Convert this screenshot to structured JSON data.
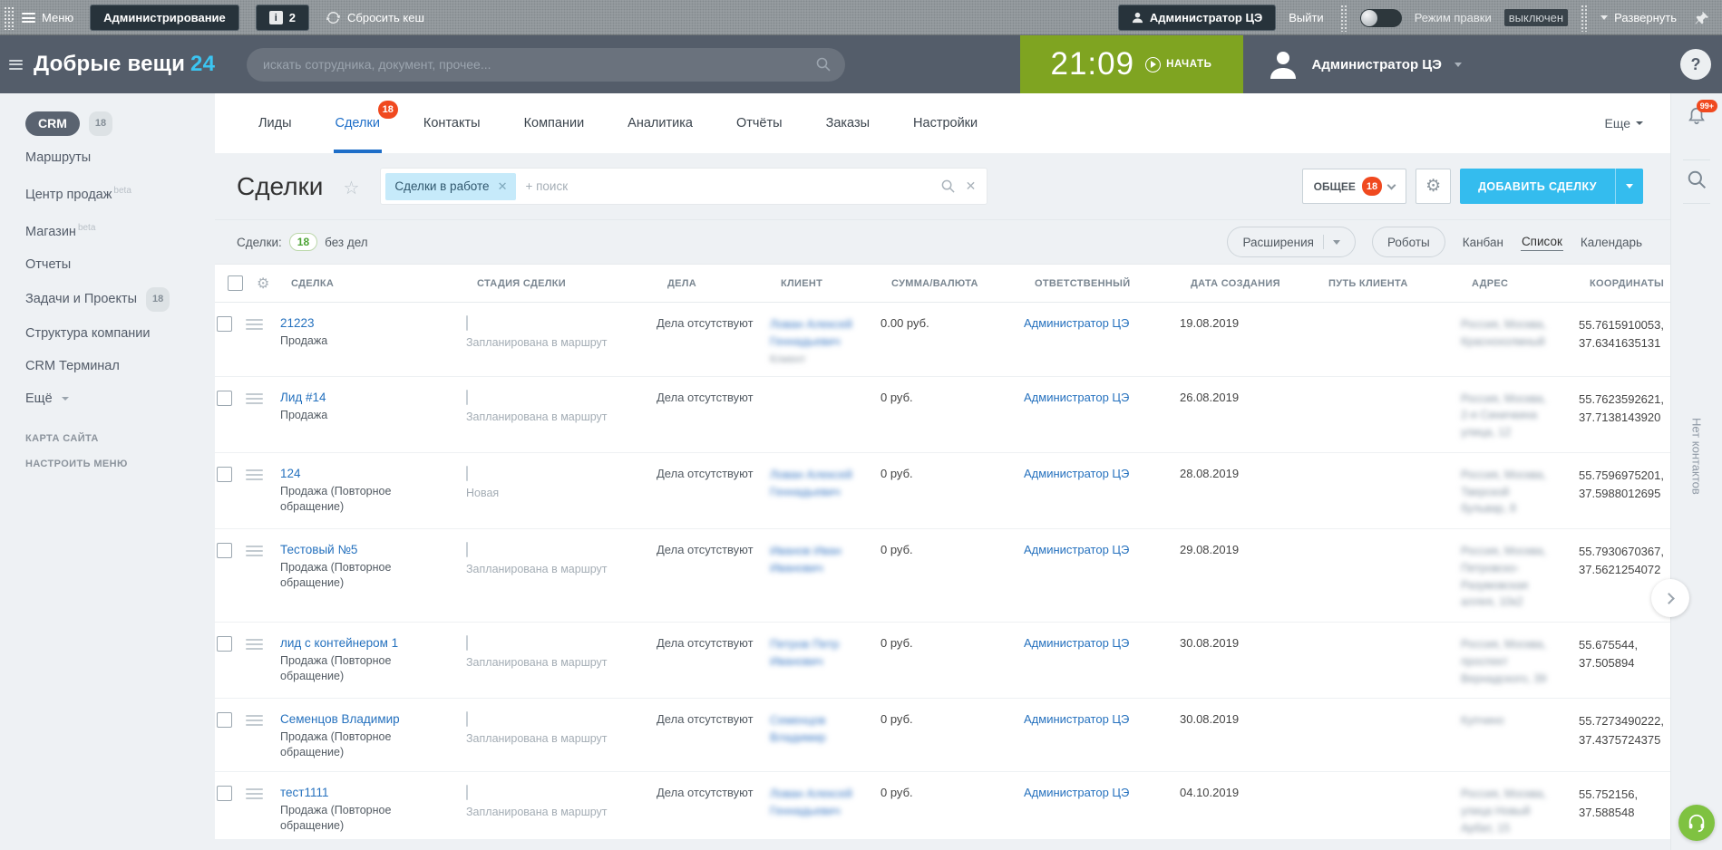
{
  "colors": {
    "header_dark": "#545d6a",
    "accent_cyan": "#34bcee",
    "link_blue": "#2571be",
    "tab_active_blue": "#1e6ec8",
    "badge_red": "#f0491f",
    "timer_green": "#7fa421",
    "chat_green": "#7fc241",
    "counter_green": "#4ca335",
    "progress_cyan": "#45c7f1"
  },
  "admin_bar": {
    "menu_label": "Меню",
    "admin_button": "Администрирование",
    "info_badge": "2",
    "reset_cache": "Сбросить кеш",
    "user_button": "Администратор ЦЭ",
    "logout": "Выйти",
    "edit_mode_label": "Режим правки",
    "edit_mode_state": "выключен",
    "expand": "Развернуть"
  },
  "header": {
    "brand": "Добрые вещи",
    "brand_suffix": "24",
    "search_placeholder": "искать сотрудника, документ, прочее...",
    "timer_time": "21:09",
    "timer_action": "НАЧАТЬ",
    "user_name": "Администратор ЦЭ",
    "help_label": "?"
  },
  "sidebar": {
    "items": [
      {
        "label": "CRM",
        "badge": "18",
        "active": true
      },
      {
        "label": "Маршруты"
      },
      {
        "label": "Центр продаж",
        "beta": "beta"
      },
      {
        "label": "Магазин",
        "beta": "beta"
      },
      {
        "label": "Отчеты"
      },
      {
        "label": "Задачи и Проекты",
        "badge": "18"
      },
      {
        "label": "Структура компании"
      },
      {
        "label": "CRM Терминал"
      },
      {
        "label": "Ещё",
        "caret": true
      }
    ],
    "footer_links": [
      {
        "label": "КАРТА САЙТА"
      },
      {
        "label": "НАСТРОИТЬ МЕНЮ"
      }
    ]
  },
  "tabs": [
    {
      "label": "Лиды"
    },
    {
      "label": "Сделки",
      "badge": "18",
      "active": true
    },
    {
      "label": "Контакты"
    },
    {
      "label": "Компании"
    },
    {
      "label": "Аналитика"
    },
    {
      "label": "Отчёты"
    },
    {
      "label": "Заказы"
    },
    {
      "label": "Настройки"
    }
  ],
  "tabs_more": "Еще",
  "page": {
    "title": "Сделки",
    "filter_chip": "Сделки в работе",
    "filter_placeholder": "+ поиск",
    "preset_button": "ОБЩЕЕ",
    "preset_badge": "18",
    "add_button": "ДОБАВИТЬ СДЕЛКУ"
  },
  "toolbar": {
    "counter_label": "Сделки:",
    "counter_value": "18",
    "counter_suffix": "без дел",
    "extensions": "Расширения",
    "robots": "Роботы",
    "views": [
      {
        "label": "Канбан"
      },
      {
        "label": "Список",
        "active": true
      },
      {
        "label": "Календарь"
      }
    ]
  },
  "table": {
    "columns": [
      "СДЕЛКА",
      "СТАДИЯ СДЕЛКИ",
      "ДЕЛА",
      "КЛИЕНТ",
      "СУММА/ВАЛЮТА",
      "ОТВЕТСТВЕННЫЙ",
      "ДАТА СОЗДАНИЯ",
      "ПУТЬ КЛИЕНТА",
      "АДРЕС",
      "КООРДИНАТЫ"
    ],
    "rows": [
      {
        "name": "21223",
        "type": "Продажа",
        "stage": "Запланирована в маршрут",
        "progress": 0.5,
        "activities": "Дела отсутствуют",
        "client_blurred": [
          "Лован Алексей",
          "Геннадьевич"
        ],
        "client_extra_blurred": "Клиент",
        "amount": "0.00 руб.",
        "responsible": "Администратор ЦЭ",
        "created": "19.08.2019",
        "path": "",
        "address_blurred": [
          "Россия, Москва,",
          "Краснохолмный"
        ],
        "coords_lat": "55.7615910053,",
        "coords_lon": "37.6341635131"
      },
      {
        "name": "Лид #14",
        "type": "Продажа",
        "stage": "Запланирована в маршрут",
        "progress": 0.5,
        "activities": "Дела отсутствуют",
        "client_blurred": [],
        "amount": "0 руб.",
        "responsible": "Администратор ЦЭ",
        "created": "26.08.2019",
        "path": "",
        "address_blurred": [
          "Россия, Москва,",
          "2-я Синичкина",
          "улица, 12"
        ],
        "coords_lat": "55.7623592621,",
        "coords_lon": "37.7138143920"
      },
      {
        "name": "124",
        "type": "Продажа (Повторное обращение)",
        "stage": "Новая",
        "progress": 0.24,
        "activities": "Дела отсутствуют",
        "client_blurred": [
          "Лован Алексей",
          "Геннадьевич"
        ],
        "amount": "0 руб.",
        "responsible": "Администратор ЦЭ",
        "created": "28.08.2019",
        "path": "",
        "address_blurred": [
          "Россия, Москва,",
          "Тверской",
          "бульвар, 8"
        ],
        "coords_lat": "55.7596975201,",
        "coords_lon": "37.5988012695"
      },
      {
        "name": "Тестовый №5",
        "type": "Продажа (Повторное обращение)",
        "stage": "Запланирована в маршрут",
        "progress": 0.5,
        "activities": "Дела отсутствуют",
        "client_blurred": [
          "Иванов Иван",
          "Иванович"
        ],
        "amount": "0 руб.",
        "responsible": "Администратор ЦЭ",
        "created": "29.08.2019",
        "path": "",
        "address_blurred": [
          "Россия, Москва,",
          "Петровско-",
          "Разумовская",
          "аллея, 10к2"
        ],
        "coords_lat": "55.7930670367,",
        "coords_lon": "37.5621254072"
      },
      {
        "name": "лид с контейнером 1",
        "type": "Продажа (Повторное обращение)",
        "stage": "Запланирована в маршрут",
        "progress": 0.5,
        "activities": "Дела отсутствуют",
        "client_blurred": [
          "Петров Петр",
          "Иванович"
        ],
        "amount": "0 руб.",
        "responsible": "Администратор ЦЭ",
        "created": "30.08.2019",
        "path": "",
        "address_blurred": [
          "Россия, Москва,",
          "проспект",
          "Вернадского, 39"
        ],
        "coords_lat": "55.675544,",
        "coords_lon": "37.505894"
      },
      {
        "name": "Семенцов Владимир",
        "type": "Продажа (Повторное обращение)",
        "stage": "Запланирована в маршрут",
        "progress": 0.5,
        "activities": "Дела отсутствуют",
        "client_blurred": [
          "Семенцов",
          "Владимир"
        ],
        "amount": "0 руб.",
        "responsible": "Администратор ЦЭ",
        "created": "30.08.2019",
        "path": "",
        "address_blurred": [
          "Купчино"
        ],
        "coords_lat": "55.7273490222,",
        "coords_lon": "37.4375724375"
      },
      {
        "name": "тест1111",
        "type": "Продажа (Повторное обращение)",
        "stage": "Запланирована в маршрут",
        "progress": 0.5,
        "activities": "Дела отсутствуют",
        "client_blurred": [
          "Лован Алексей",
          "Геннадьевич"
        ],
        "amount": "0 руб.",
        "responsible": "Администратор ЦЭ",
        "created": "04.10.2019",
        "path": "",
        "address_blurred": [
          "Россия, Москва,",
          "улица Новый",
          "Арбат, 15"
        ],
        "coords_lat": "55.752156,",
        "coords_lon": "37.588548"
      }
    ]
  },
  "right_rail": {
    "notifications_badge": "99+",
    "no_contacts_label": "Нет контактов"
  }
}
